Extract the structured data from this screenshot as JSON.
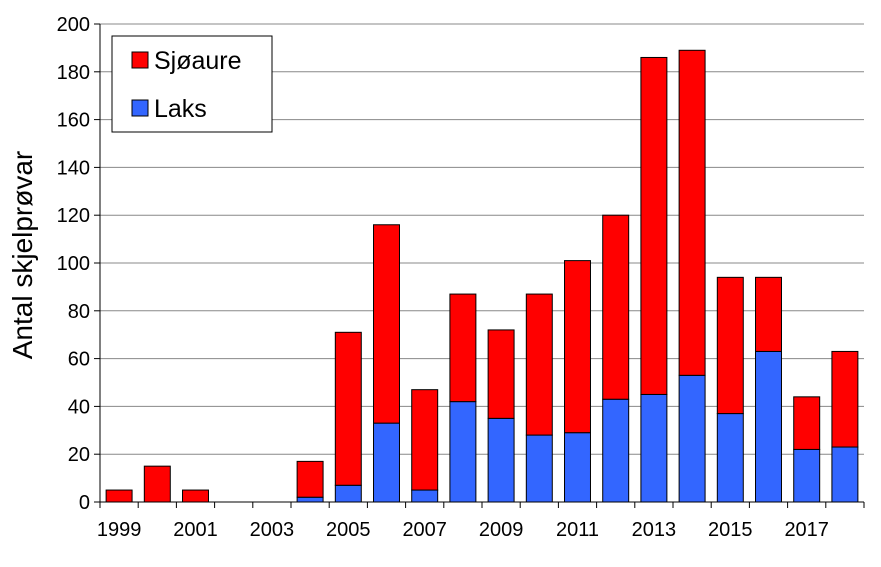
{
  "chart_data": {
    "type": "stacked_bar",
    "y_label": "Antal skjelprøvar",
    "categories": [
      "1999",
      null,
      "2001",
      null,
      "2003",
      null,
      "2005",
      null,
      "2007",
      null,
      "2009",
      null,
      "2011",
      null,
      "2013",
      null,
      "2015",
      null,
      "2017",
      null
    ],
    "series": [
      {
        "name": "Laks",
        "color": "#3366ff",
        "values": [
          0,
          0,
          0,
          0,
          0,
          2,
          7,
          33,
          5,
          42,
          35,
          28,
          29,
          43,
          45,
          53,
          37,
          63,
          22,
          23
        ]
      },
      {
        "name": "Sjøaure",
        "color": "#ff0000",
        "values": [
          5,
          15,
          5,
          0,
          0,
          15,
          64,
          83,
          42,
          45,
          37,
          59,
          72,
          77,
          141,
          136,
          57,
          31,
          22,
          40
        ]
      }
    ],
    "ylim": [
      0,
      200
    ],
    "yticks": [
      0,
      20,
      40,
      60,
      80,
      100,
      120,
      140,
      160,
      180,
      200
    ],
    "grid": true,
    "legend": "top-left"
  }
}
